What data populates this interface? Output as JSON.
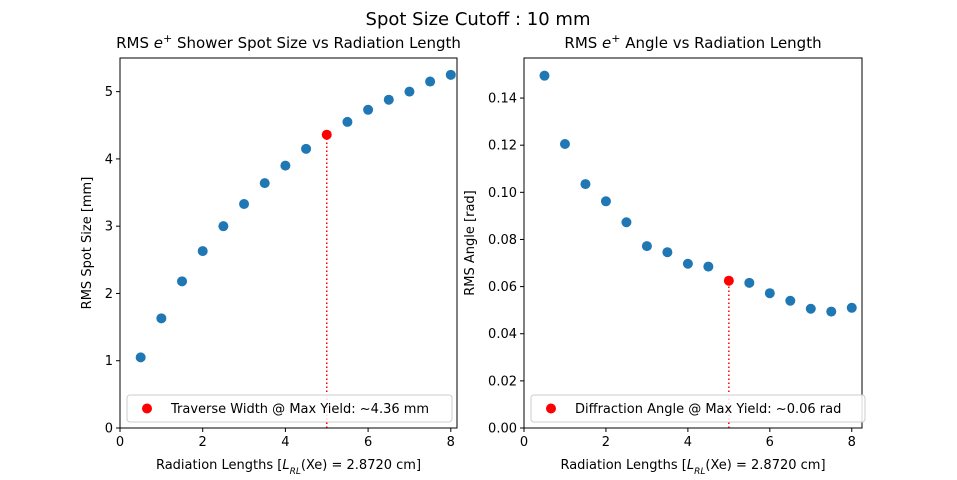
{
  "suptitle": "Spot Size Cutoff : 10 mm",
  "chart_data": [
    {
      "type": "scatter",
      "title_prefix": "RMS ",
      "title_symbol": "e",
      "title_sup": "+",
      "title_suffix": " Shower Spot Size vs Radiation Length",
      "xlabel_prefix": "Radiation Lengths [",
      "xlabel_math": "L",
      "xlabel_sub": "RL",
      "xlabel_suffix": "(Xe) = 2.8720 cm]",
      "ylabel": "RMS Spot Size [mm]",
      "xlim": [
        0,
        8.15
      ],
      "ylim": [
        0,
        5.5
      ],
      "xticks": [
        0,
        2,
        4,
        6,
        8
      ],
      "yticks": [
        0,
        1,
        2,
        3,
        4,
        5
      ],
      "ytick_decimals": 0,
      "grid": false,
      "legend_position": "lower right",
      "series": [
        {
          "color": "#1f77b4",
          "x": [
            0.5,
            1.0,
            1.5,
            2.0,
            2.5,
            3.0,
            3.5,
            4.0,
            4.5,
            5.5,
            6.0,
            6.5,
            7.0,
            7.5,
            8.0
          ],
          "y": [
            1.05,
            1.63,
            2.18,
            2.63,
            3.0,
            3.33,
            3.64,
            3.9,
            4.15,
            4.55,
            4.73,
            4.88,
            5.0,
            5.15,
            5.25
          ]
        },
        {
          "name": "Traverse Width @ Max Yield: ~4.36 mm",
          "color": "#ff0000",
          "x": [
            5.0
          ],
          "y": [
            4.36
          ]
        }
      ],
      "marker_line": {
        "x": 5.0,
        "y0": 0,
        "y1": 4.36,
        "color": "#ff0000",
        "style": "dotted"
      }
    },
    {
      "type": "scatter",
      "title_prefix": "RMS ",
      "title_symbol": "e",
      "title_sup": "+",
      "title_suffix": " Angle vs Radiation Length",
      "xlabel_prefix": "Radiation Lengths [",
      "xlabel_math": "L",
      "xlabel_sub": "RL",
      "xlabel_suffix": "(Xe) = 2.8720 cm]",
      "ylabel": "RMS Angle [rad]",
      "xlim": [
        0,
        8.25
      ],
      "ylim": [
        0,
        0.157
      ],
      "xticks": [
        0,
        2,
        4,
        6,
        8
      ],
      "yticks": [
        0.0,
        0.02,
        0.04,
        0.06,
        0.08,
        0.1,
        0.12,
        0.14
      ],
      "ytick_decimals": 2,
      "grid": false,
      "legend_position": "lower right",
      "series": [
        {
          "color": "#1f77b4",
          "x": [
            0.5,
            1.0,
            1.5,
            2.0,
            2.5,
            3.0,
            3.5,
            4.0,
            4.5,
            5.5,
            6.0,
            6.5,
            7.0,
            7.5,
            8.0
          ],
          "y": [
            0.1495,
            0.1205,
            0.1035,
            0.0962,
            0.0873,
            0.0772,
            0.0746,
            0.0697,
            0.0685,
            0.0616,
            0.0572,
            0.054,
            0.0506,
            0.0494,
            0.051
          ]
        },
        {
          "name": "Diffraction Angle @ Max Yield: ~0.06 rad",
          "color": "#ff0000",
          "x": [
            5.0
          ],
          "y": [
            0.0625
          ]
        }
      ],
      "marker_line": {
        "x": 5.0,
        "y0": 0,
        "y1": 0.0625,
        "color": "#ff0000",
        "style": "dotted"
      }
    }
  ]
}
